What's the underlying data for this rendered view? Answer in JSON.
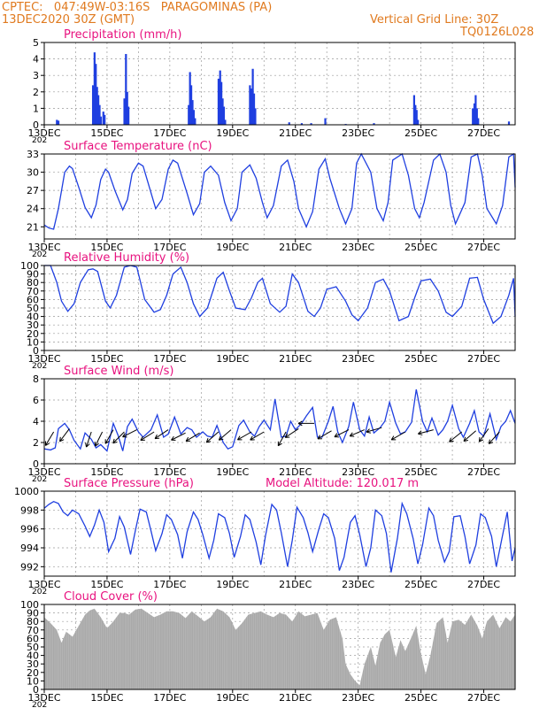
{
  "header": {
    "station_line": "CPTEC:   047:49W-03:16S   PARAGOMINAS (PA)",
    "date_line": "13DEC2020 30Z (GMT)",
    "grid_line_label": "Vertical Grid Line: 30Z",
    "run_code": "TQ0126L028"
  },
  "colors": {
    "header_text": "#e07a1f",
    "panel_title": "#e8127f",
    "series_line": "#1f3fe0",
    "cloud_fill": "#a9a9a9",
    "grid": "#9a9a9a"
  },
  "x_axis": {
    "tick_labels": [
      "13DEC",
      "15DEC",
      "17DEC",
      "19DEC",
      "21DEC",
      "23DEC",
      "25DEC",
      "27DEC"
    ],
    "year_fragment": "202"
  },
  "chart_data": [
    {
      "type": "bar",
      "title": "Precipitation (mm/h)",
      "ylim": [
        0,
        5
      ],
      "yticks": [
        0,
        1,
        2,
        3,
        4,
        5
      ],
      "x_day_range": [
        13,
        28
      ],
      "points": [
        [
          13.4,
          0.3
        ],
        [
          13.45,
          0.25
        ],
        [
          14.55,
          2.4
        ],
        [
          14.6,
          4.4
        ],
        [
          14.64,
          3.7
        ],
        [
          14.68,
          2.3
        ],
        [
          14.72,
          1.8
        ],
        [
          14.76,
          1.2
        ],
        [
          14.8,
          0.5
        ],
        [
          14.88,
          0.8
        ],
        [
          14.92,
          0.6
        ],
        [
          15.55,
          1.6
        ],
        [
          15.6,
          4.3
        ],
        [
          15.64,
          2.0
        ],
        [
          15.68,
          1.1
        ],
        [
          17.6,
          1.2
        ],
        [
          17.64,
          3.2
        ],
        [
          17.68,
          2.4
        ],
        [
          17.72,
          1.5
        ],
        [
          17.76,
          0.9
        ],
        [
          17.8,
          0.4
        ],
        [
          18.55,
          2.8
        ],
        [
          18.6,
          3.3
        ],
        [
          18.64,
          2.6
        ],
        [
          18.68,
          1.6
        ],
        [
          18.72,
          1.1
        ],
        [
          18.76,
          0.3
        ],
        [
          19.55,
          2.4
        ],
        [
          19.6,
          2.2
        ],
        [
          19.64,
          3.4
        ],
        [
          19.68,
          1.9
        ],
        [
          19.72,
          1.0
        ],
        [
          20.8,
          0.15
        ],
        [
          21.2,
          0.1
        ],
        [
          21.5,
          0.1
        ],
        [
          21.95,
          0.4
        ],
        [
          22.6,
          0.05
        ],
        [
          23.5,
          0.1
        ],
        [
          24.78,
          1.8
        ],
        [
          24.82,
          1.2
        ],
        [
          24.86,
          0.9
        ],
        [
          24.9,
          0.3
        ],
        [
          26.65,
          1.0
        ],
        [
          26.7,
          1.3
        ],
        [
          26.74,
          1.8
        ],
        [
          26.78,
          1.0
        ],
        [
          26.82,
          0.4
        ],
        [
          27.8,
          0.2
        ]
      ]
    },
    {
      "type": "line",
      "title": "Surface Temperature (nC)",
      "ylim": [
        19,
        33
      ],
      "yticks": [
        21,
        24,
        27,
        30,
        33
      ],
      "x_day_range": [
        13,
        28
      ],
      "x": [
        13.0,
        13.15,
        13.3,
        13.45,
        13.65,
        13.8,
        13.9,
        14.1,
        14.3,
        14.5,
        14.65,
        14.8,
        14.95,
        15.05,
        15.25,
        15.5,
        15.65,
        15.8,
        16.0,
        16.15,
        16.35,
        16.55,
        16.75,
        16.95,
        17.1,
        17.25,
        17.55,
        17.75,
        17.95,
        18.1,
        18.3,
        18.55,
        18.75,
        18.95,
        19.15,
        19.3,
        19.55,
        19.75,
        19.95,
        20.1,
        20.3,
        20.55,
        20.75,
        20.95,
        21.1,
        21.35,
        21.55,
        21.75,
        21.95,
        22.1,
        22.4,
        22.6,
        22.8,
        22.95,
        23.1,
        23.4,
        23.6,
        23.8,
        23.95,
        24.1,
        24.4,
        24.6,
        24.8,
        24.95,
        25.1,
        25.4,
        25.6,
        25.8,
        25.95,
        26.1,
        26.4,
        26.6,
        26.8,
        26.95,
        27.1,
        27.4,
        27.6,
        27.8,
        27.95,
        28.0
      ],
      "y": [
        21.3,
        20.8,
        20.6,
        24.0,
        30.0,
        31.0,
        30.6,
        27.5,
        24.2,
        22.5,
        24.6,
        28.8,
        30.5,
        30.0,
        27.0,
        23.8,
        25.5,
        29.8,
        31.5,
        31.0,
        27.5,
        24.0,
        25.5,
        30.5,
        32.0,
        31.5,
        26.5,
        23.0,
        24.8,
        30.0,
        31.0,
        29.5,
        25.0,
        22.0,
        24.0,
        30.0,
        31.2,
        29.0,
        25.0,
        22.5,
        24.5,
        31.0,
        32.0,
        28.5,
        24.0,
        21.0,
        23.5,
        30.5,
        32.2,
        29.0,
        24.0,
        21.5,
        24.0,
        31.5,
        33.0,
        30.0,
        24.0,
        22.0,
        25.0,
        32.0,
        33.0,
        29.5,
        24.0,
        22.5,
        25.0,
        32.0,
        33.0,
        30.0,
        24.5,
        21.5,
        25.0,
        32.5,
        33.0,
        29.5,
        24.0,
        21.5,
        24.5,
        32.5,
        33.0,
        27.5
      ]
    },
    {
      "type": "line",
      "title": "Relative Humidity (%)",
      "ylim": [
        0,
        100
      ],
      "yticks": [
        0,
        10,
        20,
        30,
        40,
        50,
        60,
        70,
        80,
        90,
        100
      ],
      "x_day_range": [
        13,
        28
      ],
      "x": [
        13.0,
        13.2,
        13.4,
        13.55,
        13.75,
        13.95,
        14.15,
        14.4,
        14.55,
        14.7,
        14.95,
        15.1,
        15.3,
        15.55,
        15.75,
        15.95,
        16.2,
        16.5,
        16.7,
        16.9,
        17.1,
        17.35,
        17.55,
        17.75,
        17.95,
        18.2,
        18.5,
        18.7,
        18.9,
        19.1,
        19.4,
        19.6,
        19.8,
        19.95,
        20.2,
        20.5,
        20.7,
        20.9,
        21.1,
        21.4,
        21.6,
        21.8,
        22.0,
        22.3,
        22.6,
        22.8,
        23.0,
        23.3,
        23.55,
        23.8,
        24.0,
        24.3,
        24.6,
        24.8,
        25.0,
        25.3,
        25.55,
        25.8,
        26.0,
        26.3,
        26.55,
        26.8,
        27.0,
        27.3,
        27.55,
        27.8,
        27.95,
        28.0
      ],
      "y": [
        100,
        100,
        80,
        58,
        46,
        55,
        80,
        95,
        96,
        93,
        58,
        50,
        65,
        98,
        100,
        98,
        60,
        45,
        48,
        65,
        90,
        98,
        80,
        55,
        40,
        50,
        85,
        92,
        70,
        50,
        48,
        62,
        80,
        85,
        55,
        45,
        52,
        90,
        80,
        46,
        40,
        50,
        72,
        75,
        58,
        42,
        35,
        50,
        80,
        84,
        70,
        35,
        40,
        62,
        82,
        84,
        70,
        45,
        40,
        52,
        85,
        86,
        60,
        32,
        40,
        65,
        85,
        40
      ]
    },
    {
      "type": "line",
      "title": "Surface Wind (m/s)",
      "ylim": [
        0,
        8
      ],
      "yticks": [
        0,
        2,
        4,
        6,
        8
      ],
      "x_day_range": [
        13,
        28
      ],
      "x": [
        13.0,
        13.2,
        13.35,
        13.45,
        13.65,
        13.8,
        13.95,
        14.15,
        14.3,
        14.5,
        14.65,
        14.8,
        15.0,
        15.2,
        15.35,
        15.5,
        15.65,
        15.8,
        16.0,
        16.15,
        16.4,
        16.6,
        16.8,
        16.95,
        17.15,
        17.35,
        17.55,
        17.7,
        17.85,
        18.05,
        18.2,
        18.35,
        18.5,
        18.7,
        18.85,
        19.0,
        19.2,
        19.35,
        19.55,
        19.7,
        19.85,
        20.0,
        20.2,
        20.35,
        20.55,
        20.7,
        20.85,
        21.0,
        21.2,
        21.35,
        21.55,
        21.7,
        21.85,
        22.05,
        22.2,
        22.35,
        22.5,
        22.7,
        22.85,
        23.05,
        23.2,
        23.35,
        23.5,
        23.7,
        23.85,
        24.0,
        24.2,
        24.35,
        24.5,
        24.7,
        24.85,
        25.05,
        25.2,
        25.35,
        25.55,
        25.7,
        25.85,
        26.0,
        26.2,
        26.35,
        26.55,
        26.7,
        26.85,
        27.0,
        27.2,
        27.4,
        27.55,
        27.7,
        27.85,
        28.0
      ],
      "y": [
        1.4,
        1.3,
        1.5,
        3.3,
        3.8,
        3.2,
        2.2,
        1.4,
        2.9,
        2.3,
        1.5,
        1.8,
        1.2,
        3.8,
        2.7,
        1.2,
        3.5,
        4.2,
        3.0,
        2.5,
        3.2,
        4.6,
        2.5,
        2.8,
        4.4,
        2.8,
        3.4,
        3.2,
        2.5,
        3.0,
        2.6,
        2.5,
        3.6,
        2.0,
        1.4,
        1.6,
        3.6,
        4.1,
        3.0,
        2.6,
        3.5,
        4.1,
        3.2,
        6.1,
        2.5,
        2.6,
        4.0,
        3.2,
        3.8,
        4.5,
        5.3,
        2.5,
        2.5,
        4.0,
        5.4,
        3.0,
        2.0,
        3.5,
        5.8,
        3.2,
        2.6,
        4.4,
        2.9,
        3.4,
        4.0,
        5.8,
        3.8,
        2.8,
        3.0,
        3.9,
        7.0,
        4.0,
        3.0,
        4.3,
        2.7,
        3.2,
        4.0,
        5.5,
        3.3,
        2.5,
        3.8,
        5.0,
        3.0,
        2.6,
        4.7,
        2.3,
        3.5,
        4.0,
        5.0,
        3.8
      ],
      "arrows": [
        {
          "day": 13.3,
          "speed": 3.0,
          "u": -0.6,
          "v": -1.0
        },
        {
          "day": 13.8,
          "speed": 3.3,
          "u": -0.6,
          "v": -0.8
        },
        {
          "day": 14.5,
          "speed": 3.0,
          "u": -0.3,
          "v": -0.9
        },
        {
          "day": 14.85,
          "speed": 3.0,
          "u": -0.4,
          "v": -0.8
        },
        {
          "day": 15.2,
          "speed": 3.2,
          "u": -0.4,
          "v": -0.7
        },
        {
          "day": 15.55,
          "speed": 3.0,
          "u": -0.6,
          "v": -0.6
        },
        {
          "day": 15.95,
          "speed": 3.2,
          "u": -1.2,
          "v": -0.6
        },
        {
          "day": 16.5,
          "speed": 3.0,
          "u": -0.8,
          "v": -0.5
        },
        {
          "day": 16.95,
          "speed": 3.2,
          "u": -0.9,
          "v": -0.6
        },
        {
          "day": 17.5,
          "speed": 2.9,
          "u": -1.0,
          "v": -0.5
        },
        {
          "day": 17.95,
          "speed": 2.9,
          "u": -1.5,
          "v": -0.9
        },
        {
          "day": 18.55,
          "speed": 3.0,
          "u": -0.8,
          "v": -0.7
        },
        {
          "day": 18.95,
          "speed": 3.2,
          "u": -0.7,
          "v": -0.6
        },
        {
          "day": 19.6,
          "speed": 3.0,
          "u": -0.7,
          "v": -0.4
        },
        {
          "day": 20.0,
          "speed": 3.0,
          "u": -1.2,
          "v": -0.7
        },
        {
          "day": 20.7,
          "speed": 3.0,
          "u": -0.5,
          "v": -0.9
        },
        {
          "day": 21.1,
          "speed": 3.3,
          "u": -1.2,
          "v": -0.8
        },
        {
          "day": 21.6,
          "speed": 3.8,
          "u": -0.7,
          "v": 0.0
        },
        {
          "day": 22.15,
          "speed": 3.1,
          "u": -1.2,
          "v": -0.7
        },
        {
          "day": 22.7,
          "speed": 3.2,
          "u": -0.6,
          "v": -0.3
        },
        {
          "day": 23.2,
          "speed": 3.2,
          "u": -1.4,
          "v": -0.6
        },
        {
          "day": 23.75,
          "speed": 3.4,
          "u": -0.7,
          "v": -0.2
        },
        {
          "day": 24.5,
          "speed": 3.0,
          "u": -1.4,
          "v": -0.8
        },
        {
          "day": 25.4,
          "speed": 3.2,
          "u": -1.5,
          "v": -0.4
        },
        {
          "day": 26.3,
          "speed": 3.0,
          "u": -1.0,
          "v": -0.8
        },
        {
          "day": 26.75,
          "speed": 3.1,
          "u": -0.7,
          "v": -0.6
        },
        {
          "day": 27.15,
          "speed": 3.3,
          "u": -0.5,
          "v": -0.7
        },
        {
          "day": 27.5,
          "speed": 3.0,
          "u": -0.8,
          "v": -0.9
        }
      ]
    },
    {
      "type": "line",
      "title": "Surface Pressure (hPa)",
      "annotation": "Model Altitude:  120.017  m",
      "ylim": [
        991,
        1000
      ],
      "yticks": [
        992,
        994,
        996,
        998,
        1000
      ],
      "x_day_range": [
        13,
        28
      ],
      "x": [
        13.0,
        13.15,
        13.3,
        13.45,
        13.6,
        13.75,
        13.9,
        14.1,
        14.3,
        14.45,
        14.6,
        14.75,
        14.9,
        15.05,
        15.25,
        15.4,
        15.55,
        15.75,
        15.9,
        16.05,
        16.25,
        16.4,
        16.55,
        16.75,
        16.9,
        17.05,
        17.25,
        17.4,
        17.55,
        17.75,
        17.9,
        18.05,
        18.25,
        18.4,
        18.55,
        18.75,
        18.9,
        19.05,
        19.25,
        19.4,
        19.55,
        19.75,
        19.9,
        20.05,
        20.25,
        20.4,
        20.55,
        20.75,
        20.9,
        21.05,
        21.25,
        21.4,
        21.55,
        21.75,
        21.9,
        22.05,
        22.25,
        22.4,
        22.55,
        22.75,
        22.9,
        23.05,
        23.25,
        23.4,
        23.55,
        23.75,
        23.9,
        24.05,
        24.25,
        24.4,
        24.55,
        24.75,
        24.9,
        25.05,
        25.25,
        25.4,
        25.55,
        25.75,
        25.9,
        26.05,
        26.25,
        26.4,
        26.55,
        26.75,
        26.9,
        27.05,
        27.25,
        27.4,
        27.55,
        27.75,
        27.9,
        28.0
      ],
      "y": [
        998.2,
        998.6,
        998.9,
        998.7,
        997.8,
        997.4,
        998.0,
        997.6,
        996.3,
        995.2,
        996.4,
        998.0,
        996.7,
        993.6,
        995.0,
        997.3,
        996.2,
        993.3,
        995.8,
        998.1,
        997.8,
        995.8,
        993.7,
        995.5,
        997.5,
        997.0,
        995.4,
        992.9,
        995.7,
        997.8,
        997.0,
        995.4,
        992.9,
        994.8,
        997.6,
        997.2,
        995.5,
        993.0,
        995.2,
        997.5,
        997.0,
        994.6,
        992.2,
        995.3,
        998.6,
        998.0,
        995.6,
        992.0,
        994.8,
        998.3,
        997.2,
        995.6,
        993.6,
        996.0,
        997.6,
        997.2,
        995.0,
        991.6,
        993.0,
        996.7,
        997.4,
        995.4,
        992.0,
        994.0,
        998.0,
        997.4,
        995.5,
        991.4,
        995.0,
        998.7,
        997.6,
        995.0,
        992.3,
        994.3,
        998.2,
        997.4,
        994.8,
        992.5,
        993.6,
        997.3,
        997.4,
        995.2,
        992.3,
        994.3,
        997.6,
        997.2,
        995.2,
        992.0,
        994.5,
        997.8,
        992.6,
        994.0
      ]
    },
    {
      "type": "area",
      "title": "Cloud Cover (%)",
      "ylim": [
        0,
        100
      ],
      "yticks": [
        0,
        10,
        20,
        30,
        40,
        50,
        60,
        70,
        80,
        90,
        100
      ],
      "x_day_range": [
        13,
        28
      ],
      "x": [
        13.0,
        13.2,
        13.4,
        13.55,
        13.7,
        13.9,
        14.1,
        14.3,
        14.45,
        14.6,
        14.8,
        15.0,
        15.2,
        15.4,
        15.55,
        15.7,
        15.9,
        16.1,
        16.3,
        16.5,
        16.7,
        16.9,
        17.1,
        17.3,
        17.5,
        17.7,
        17.9,
        18.1,
        18.3,
        18.5,
        18.7,
        18.9,
        19.1,
        19.3,
        19.5,
        19.7,
        19.9,
        20.1,
        20.3,
        20.5,
        20.7,
        20.9,
        21.1,
        21.3,
        21.5,
        21.7,
        21.9,
        22.1,
        22.3,
        22.5,
        22.6,
        22.75,
        22.9,
        23.05,
        23.2,
        23.4,
        23.55,
        23.7,
        23.85,
        24.0,
        24.2,
        24.35,
        24.5,
        24.7,
        24.85,
        25.0,
        25.15,
        25.3,
        25.5,
        25.7,
        25.85,
        26.0,
        26.2,
        26.4,
        26.6,
        26.8,
        26.95,
        27.1,
        27.3,
        27.5,
        27.7,
        27.85,
        28.0
      ],
      "y": [
        85,
        78,
        70,
        55,
        68,
        62,
        75,
        88,
        93,
        95,
        85,
        72,
        80,
        90,
        90,
        88,
        94,
        95,
        90,
        85,
        88,
        92,
        92,
        90,
        84,
        92,
        86,
        80,
        85,
        95,
        92,
        85,
        70,
        78,
        88,
        90,
        92,
        88,
        85,
        90,
        88,
        80,
        92,
        86,
        88,
        90,
        70,
        82,
        85,
        60,
        30,
        18,
        10,
        5,
        30,
        50,
        28,
        55,
        65,
        70,
        38,
        58,
        45,
        62,
        75,
        42,
        18,
        40,
        78,
        85,
        55,
        80,
        82,
        76,
        88,
        75,
        60,
        80,
        88,
        72,
        85,
        80,
        88
      ]
    }
  ]
}
